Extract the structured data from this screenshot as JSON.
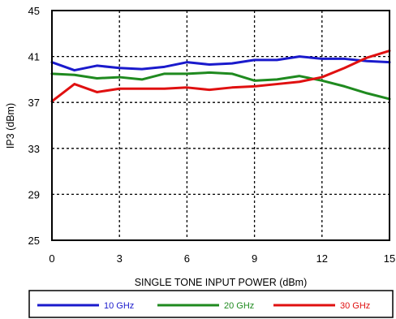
{
  "chart_data": {
    "type": "line",
    "title": "",
    "xlabel": "SINGLE TONE INPUT POWER (dBm)",
    "ylabel": "IP3 (dBm)",
    "xlim": [
      0,
      15
    ],
    "ylim": [
      25,
      45
    ],
    "xticks": [
      0,
      3,
      6,
      9,
      12,
      15
    ],
    "yticks": [
      25,
      29,
      33,
      37,
      41,
      45
    ],
    "grid": true,
    "legend_position": "bottom",
    "x": [
      0,
      1,
      2,
      3,
      4,
      5,
      6,
      7,
      8,
      9,
      10,
      11,
      12,
      13,
      14,
      15
    ],
    "series": [
      {
        "name": "10 GHz",
        "color": "#1a1acc",
        "values": [
          40.5,
          39.8,
          40.2,
          40.0,
          39.9,
          40.1,
          40.5,
          40.3,
          40.4,
          40.7,
          40.7,
          41.0,
          40.8,
          40.8,
          40.6,
          40.5
        ]
      },
      {
        "name": "20 GHz",
        "color": "#1f8a1f",
        "values": [
          39.5,
          39.4,
          39.1,
          39.2,
          39.0,
          39.5,
          39.5,
          39.6,
          39.5,
          38.9,
          39.0,
          39.3,
          38.9,
          38.4,
          37.8,
          37.3
        ]
      },
      {
        "name": "30 GHz",
        "color": "#e01010",
        "values": [
          37.1,
          38.6,
          37.9,
          38.2,
          38.2,
          38.2,
          38.3,
          38.1,
          38.3,
          38.4,
          38.6,
          38.8,
          39.2,
          40.0,
          40.9,
          41.5
        ]
      }
    ]
  }
}
